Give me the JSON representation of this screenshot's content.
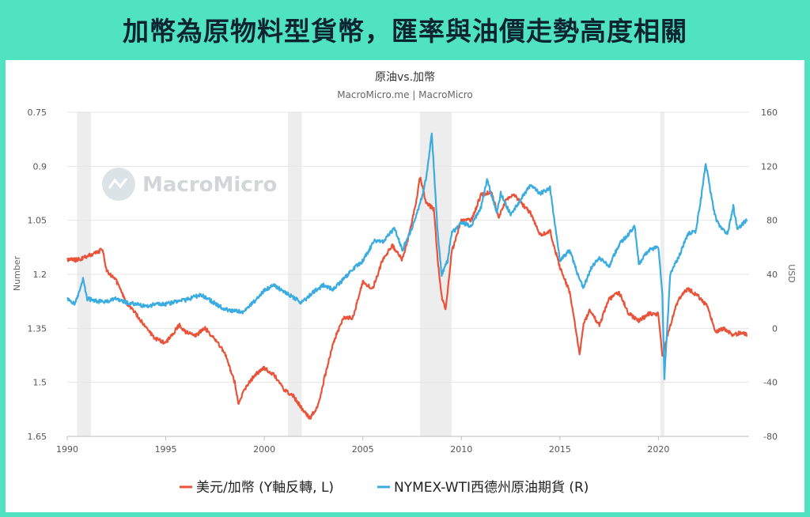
{
  "banner": {
    "title": "加幣為原物料型貨幣，匯率與油價走勢高度相關"
  },
  "watermark": {
    "text": "MacroMicro"
  },
  "chart_data": {
    "type": "line",
    "title": "原油vs.加幣",
    "subtitle": "MacroMicro.me | MacroMicro",
    "xlim": [
      1990,
      2024.6
    ],
    "x_ticks": [
      "1990",
      "1995",
      "2000",
      "2005",
      "2010",
      "2015",
      "2020"
    ],
    "y_left": {
      "label": "Number",
      "reversed": true,
      "range": [
        0.75,
        1.65
      ],
      "ticks": [
        "0.75",
        "0.9",
        "1.05",
        "1.2",
        "1.35",
        "1.5",
        "1.65"
      ]
    },
    "y_right": {
      "label": "USD",
      "range": [
        -80,
        160
      ],
      "ticks": [
        "160",
        "120",
        "80",
        "40",
        "0",
        "-40",
        "-80"
      ]
    },
    "recessions": [
      [
        1990.5,
        1991.2
      ],
      [
        2001.2,
        2001.9
      ],
      [
        2007.9,
        2009.5
      ],
      [
        2020.1,
        2020.3
      ]
    ],
    "grid": true,
    "legend_position": "bottom",
    "series": [
      {
        "name": "美元/加幣 (Y軸反轉, L)",
        "axis": "left",
        "color": "#e8533a",
        "points": [
          [
            1990,
            1.16
          ],
          [
            1990.5,
            1.16
          ],
          [
            1991,
            1.15
          ],
          [
            1991.5,
            1.14
          ],
          [
            1991.8,
            1.13
          ],
          [
            1992,
            1.19
          ],
          [
            1992.5,
            1.22
          ],
          [
            1993,
            1.28
          ],
          [
            1993.5,
            1.31
          ],
          [
            1994,
            1.35
          ],
          [
            1994.5,
            1.38
          ],
          [
            1995,
            1.39
          ],
          [
            1995.3,
            1.37
          ],
          [
            1995.7,
            1.34
          ],
          [
            1996,
            1.36
          ],
          [
            1996.5,
            1.37
          ],
          [
            1997,
            1.35
          ],
          [
            1997.5,
            1.38
          ],
          [
            1998,
            1.42
          ],
          [
            1998.5,
            1.5
          ],
          [
            1998.7,
            1.56
          ],
          [
            1999,
            1.52
          ],
          [
            1999.5,
            1.48
          ],
          [
            2000,
            1.46
          ],
          [
            2000.5,
            1.48
          ],
          [
            2001,
            1.52
          ],
          [
            2001.5,
            1.54
          ],
          [
            2002,
            1.58
          ],
          [
            2002.3,
            1.6
          ],
          [
            2002.7,
            1.57
          ],
          [
            2003,
            1.5
          ],
          [
            2003.5,
            1.39
          ],
          [
            2004,
            1.32
          ],
          [
            2004.5,
            1.32
          ],
          [
            2005,
            1.22
          ],
          [
            2005.5,
            1.24
          ],
          [
            2006,
            1.16
          ],
          [
            2006.5,
            1.12
          ],
          [
            2007,
            1.16
          ],
          [
            2007.3,
            1.1
          ],
          [
            2007.7,
            1.0
          ],
          [
            2007.9,
            0.93
          ],
          [
            2008.2,
            1.0
          ],
          [
            2008.6,
            1.02
          ],
          [
            2008.8,
            1.16
          ],
          [
            2009,
            1.26
          ],
          [
            2009.2,
            1.3
          ],
          [
            2009.5,
            1.14
          ],
          [
            2010,
            1.05
          ],
          [
            2010.5,
            1.05
          ],
          [
            2011,
            0.98
          ],
          [
            2011.5,
            0.97
          ],
          [
            2011.9,
            1.04
          ],
          [
            2012.3,
            0.99
          ],
          [
            2012.7,
            0.98
          ],
          [
            2013,
            1.0
          ],
          [
            2013.5,
            1.03
          ],
          [
            2014,
            1.09
          ],
          [
            2014.5,
            1.08
          ],
          [
            2015,
            1.18
          ],
          [
            2015.5,
            1.25
          ],
          [
            2016,
            1.42
          ],
          [
            2016.2,
            1.34
          ],
          [
            2016.5,
            1.3
          ],
          [
            2017,
            1.34
          ],
          [
            2017.5,
            1.27
          ],
          [
            2018,
            1.25
          ],
          [
            2018.5,
            1.31
          ],
          [
            2019,
            1.33
          ],
          [
            2019.5,
            1.31
          ],
          [
            2020,
            1.31
          ],
          [
            2020.2,
            1.43
          ],
          [
            2020.5,
            1.36
          ],
          [
            2021,
            1.27
          ],
          [
            2021.5,
            1.24
          ],
          [
            2022,
            1.26
          ],
          [
            2022.5,
            1.29
          ],
          [
            2022.9,
            1.36
          ],
          [
            2023.3,
            1.35
          ],
          [
            2023.8,
            1.37
          ],
          [
            2024.2,
            1.36
          ],
          [
            2024.5,
            1.37
          ]
        ]
      },
      {
        "name": "NYMEX-WTI西德州原油期貨 (R)",
        "axis": "right",
        "color": "#3aace0",
        "points": [
          [
            1990,
            22
          ],
          [
            1990.4,
            18
          ],
          [
            1990.8,
            37
          ],
          [
            1991,
            22
          ],
          [
            1991.5,
            20
          ],
          [
            1992,
            20
          ],
          [
            1992.5,
            22
          ],
          [
            1993,
            19
          ],
          [
            1993.5,
            18
          ],
          [
            1994,
            16
          ],
          [
            1994.5,
            18
          ],
          [
            1995,
            18
          ],
          [
            1996,
            21
          ],
          [
            1996.8,
            25
          ],
          [
            1997,
            23
          ],
          [
            1998,
            14
          ],
          [
            1998.9,
            12
          ],
          [
            1999.5,
            20
          ],
          [
            2000,
            28
          ],
          [
            2000.5,
            32
          ],
          [
            2001,
            27
          ],
          [
            2001.9,
            19
          ],
          [
            2002.5,
            27
          ],
          [
            2003,
            32
          ],
          [
            2003.5,
            29
          ],
          [
            2004,
            36
          ],
          [
            2004.5,
            44
          ],
          [
            2005,
            50
          ],
          [
            2005.6,
            65
          ],
          [
            2006,
            64
          ],
          [
            2006.6,
            74
          ],
          [
            2007,
            58
          ],
          [
            2007.5,
            74
          ],
          [
            2007.9,
            92
          ],
          [
            2008.2,
            110
          ],
          [
            2008.5,
            145
          ],
          [
            2008.8,
            70
          ],
          [
            2009,
            40
          ],
          [
            2009.3,
            50
          ],
          [
            2009.5,
            70
          ],
          [
            2010,
            78
          ],
          [
            2010.5,
            76
          ],
          [
            2011,
            90
          ],
          [
            2011.3,
            110
          ],
          [
            2011.8,
            86
          ],
          [
            2012,
            100
          ],
          [
            2012.5,
            84
          ],
          [
            2013,
            95
          ],
          [
            2013.5,
            106
          ],
          [
            2014,
            100
          ],
          [
            2014.5,
            104
          ],
          [
            2015,
            50
          ],
          [
            2015.5,
            58
          ],
          [
            2015.9,
            40
          ],
          [
            2016.2,
            30
          ],
          [
            2016.6,
            45
          ],
          [
            2017,
            52
          ],
          [
            2017.5,
            46
          ],
          [
            2018,
            62
          ],
          [
            2018.8,
            75
          ],
          [
            2019,
            48
          ],
          [
            2019.5,
            58
          ],
          [
            2020,
            60
          ],
          [
            2020.2,
            25
          ],
          [
            2020.3,
            -37
          ],
          [
            2020.6,
            40
          ],
          [
            2021,
            52
          ],
          [
            2021.5,
            70
          ],
          [
            2021.9,
            72
          ],
          [
            2022.2,
            100
          ],
          [
            2022.4,
            122
          ],
          [
            2022.8,
            88
          ],
          [
            2023,
            78
          ],
          [
            2023.5,
            70
          ],
          [
            2023.8,
            90
          ],
          [
            2024,
            74
          ],
          [
            2024.5,
            80
          ]
        ]
      }
    ]
  }
}
